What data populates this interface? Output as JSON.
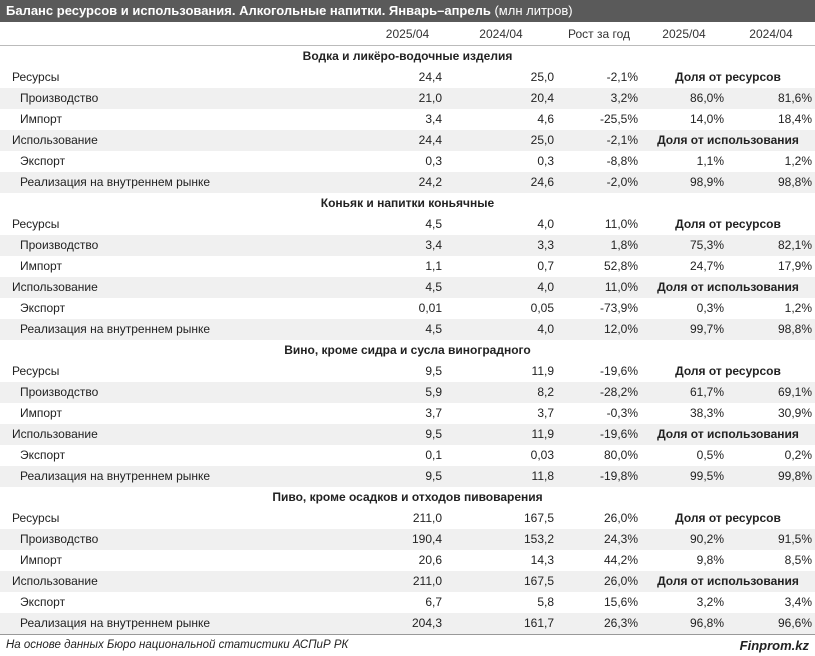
{
  "header": {
    "title": "Баланс ресурсов и использования. Алкогольные напитки. Январь–апрель",
    "unit": "(млн литров)"
  },
  "table": {
    "columns": [
      "2025/04",
      "2024/04",
      "Рост за год",
      "2025/04",
      "2024/04"
    ],
    "sections": [
      {
        "title": "Водка и ликёро-водочные изделия",
        "rows": [
          {
            "label": "Ресурсы",
            "cells": [
              "24,4",
              "25,0",
              "-2,1%"
            ],
            "share_label": "Доля от ресурсов"
          },
          {
            "label": "Производство",
            "cells": [
              "21,0",
              "20,4",
              "3,2%",
              "86,0%",
              "81,6%"
            ]
          },
          {
            "label": "Импорт",
            "cells": [
              "3,4",
              "4,6",
              "-25,5%",
              "14,0%",
              "18,4%"
            ]
          },
          {
            "label": "Использование",
            "cells": [
              "24,4",
              "25,0",
              "-2,1%"
            ],
            "share_label": "Доля от использования"
          },
          {
            "label": "Экспорт",
            "cells": [
              "0,3",
              "0,3",
              "-8,8%",
              "1,1%",
              "1,2%"
            ]
          },
          {
            "label": "Реализация на внутреннем рынке",
            "cells": [
              "24,2",
              "24,6",
              "-2,0%",
              "98,9%",
              "98,8%"
            ]
          }
        ]
      },
      {
        "title": "Коньяк и напитки коньячные",
        "rows": [
          {
            "label": "Ресурсы",
            "cells": [
              "4,5",
              "4,0",
              "11,0%"
            ],
            "share_label": "Доля от ресурсов"
          },
          {
            "label": "Производство",
            "cells": [
              "3,4",
              "3,3",
              "1,8%",
              "75,3%",
              "82,1%"
            ]
          },
          {
            "label": "Импорт",
            "cells": [
              "1,1",
              "0,7",
              "52,8%",
              "24,7%",
              "17,9%"
            ]
          },
          {
            "label": "Использование",
            "cells": [
              "4,5",
              "4,0",
              "11,0%"
            ],
            "share_label": "Доля от использования"
          },
          {
            "label": "Экспорт",
            "cells": [
              "0,01",
              "0,05",
              "-73,9%",
              "0,3%",
              "1,2%"
            ]
          },
          {
            "label": "Реализация на внутреннем рынке",
            "cells": [
              "4,5",
              "4,0",
              "12,0%",
              "99,7%",
              "98,8%"
            ]
          }
        ]
      },
      {
        "title": "Вино, кроме сидра и сусла виноградного",
        "rows": [
          {
            "label": "Ресурсы",
            "cells": [
              "9,5",
              "11,9",
              "-19,6%"
            ],
            "share_label": "Доля от ресурсов"
          },
          {
            "label": "Производство",
            "cells": [
              "5,9",
              "8,2",
              "-28,2%",
              "61,7%",
              "69,1%"
            ]
          },
          {
            "label": "Импорт",
            "cells": [
              "3,7",
              "3,7",
              "-0,3%",
              "38,3%",
              "30,9%"
            ]
          },
          {
            "label": "Использование",
            "cells": [
              "9,5",
              "11,9",
              "-19,6%"
            ],
            "share_label": "Доля от использования"
          },
          {
            "label": "Экспорт",
            "cells": [
              "0,1",
              "0,03",
              "80,0%",
              "0,5%",
              "0,2%"
            ]
          },
          {
            "label": "Реализация на внутреннем рынке",
            "cells": [
              "9,5",
              "11,8",
              "-19,8%",
              "99,5%",
              "99,8%"
            ]
          }
        ]
      },
      {
        "title": "Пиво, кроме осадков и отходов пивоварения",
        "rows": [
          {
            "label": "Ресурсы",
            "cells": [
              "211,0",
              "167,5",
              "26,0%"
            ],
            "share_label": "Доля от ресурсов"
          },
          {
            "label": "Производство",
            "cells": [
              "190,4",
              "153,2",
              "24,3%",
              "90,2%",
              "91,5%"
            ]
          },
          {
            "label": "Импорт",
            "cells": [
              "20,6",
              "14,3",
              "44,2%",
              "9,8%",
              "8,5%"
            ]
          },
          {
            "label": "Использование",
            "cells": [
              "211,0",
              "167,5",
              "26,0%"
            ],
            "share_label": "Доля от использования"
          },
          {
            "label": "Экспорт",
            "cells": [
              "6,7",
              "5,8",
              "15,6%",
              "3,2%",
              "3,4%"
            ]
          },
          {
            "label": "Реализация на внутреннем рынке",
            "cells": [
              "204,3",
              "161,7",
              "26,3%",
              "96,8%",
              "96,6%"
            ]
          }
        ]
      }
    ]
  },
  "footer": {
    "source": "На основе данных Бюро национальной статистики АСПиР РК",
    "brand": "Finprom.kz"
  }
}
